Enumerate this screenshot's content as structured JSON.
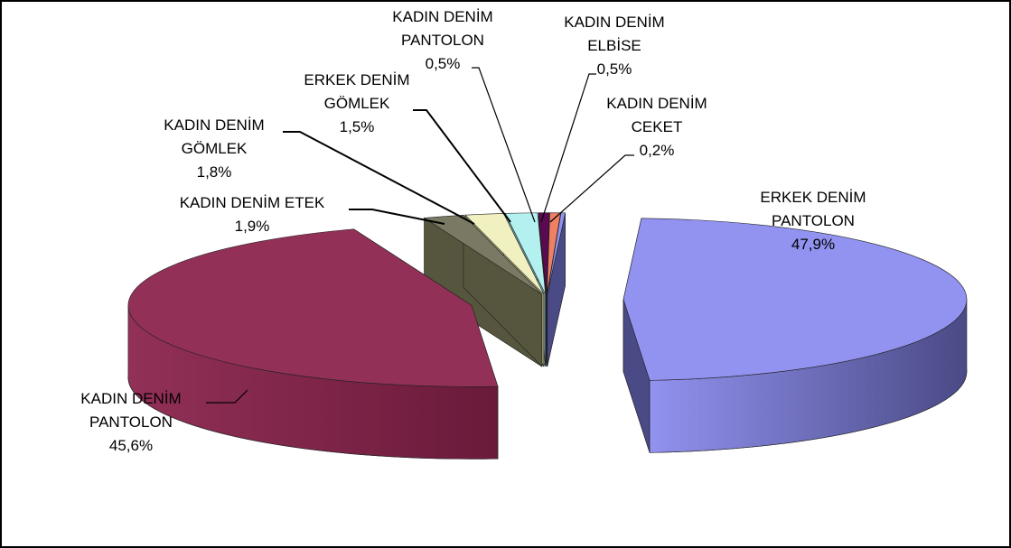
{
  "chart_data": {
    "type": "pie",
    "style": "3d-exploded",
    "legend": "none",
    "slices": [
      {
        "label": [
          "ERKEK DENİM",
          "PANTOLON"
        ],
        "value_text": "47,9%",
        "value": 47.9,
        "color": "#9292f0",
        "side_color": "#4a4a86"
      },
      {
        "label": [
          "KADIN DENİM",
          "PANTOLON"
        ],
        "value_text": "45,6%",
        "value": 45.6,
        "color": "#923058",
        "side_color": "#6a1a3a"
      },
      {
        "label": [
          "KADIN DENİM ETEK"
        ],
        "value_text": "1,9%",
        "value": 1.9,
        "color": "#7a7a64",
        "side_color": "#56563e"
      },
      {
        "label": [
          "KADIN DENİM",
          "GÖMLEK"
        ],
        "value_text": "1,8%",
        "value": 1.8,
        "color": "#f0f0c0",
        "side_color": "#b0b080"
      },
      {
        "label": [
          "ERKEK DENİM",
          "GÖMLEK"
        ],
        "value_text": "1,5%",
        "value": 1.5,
        "color": "#b4f0f0",
        "side_color": "#70a8a8"
      },
      {
        "label": [
          "KADIN DENİM",
          "PANTOLON"
        ],
        "value_text": "0,5%",
        "value": 0.5,
        "color": "#5a0a52",
        "side_color": "#3a0434"
      },
      {
        "label": [
          "KADIN DENİM",
          "ELBİSE"
        ],
        "value_text": "0,5%",
        "value": 0.5,
        "color": "#f08064",
        "side_color": "#a84a38"
      },
      {
        "label": [
          "KADIN DENİM",
          "CEKET"
        ],
        "value_text": "0,2%",
        "value": 0.2,
        "color": "#9292f0",
        "side_color": "#4a4a86"
      }
    ]
  }
}
